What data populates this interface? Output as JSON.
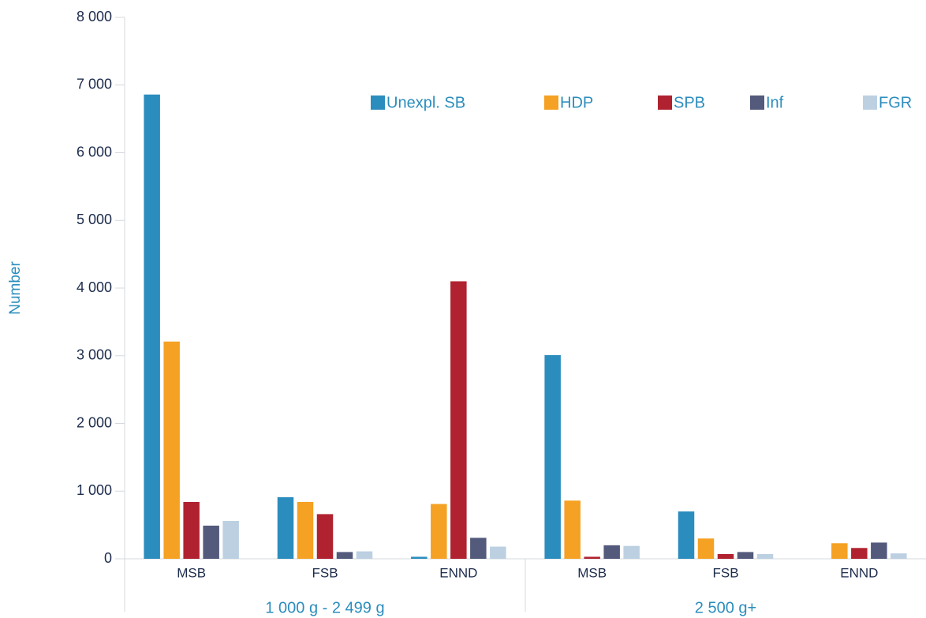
{
  "chart_data": {
    "type": "bar",
    "y_label": "Number",
    "groups": [
      {
        "name": "1 000 g - 2 499 g",
        "categories": [
          "MSB",
          "FSB",
          "ENND"
        ]
      },
      {
        "name": "2 500 g+",
        "categories": [
          "MSB",
          "FSB",
          "ENND"
        ]
      }
    ],
    "series": [
      {
        "name": "Unexpl. SB",
        "color": "#2b8dbd",
        "values": [
          6860,
          910,
          30,
          3010,
          700,
          0
        ]
      },
      {
        "name": "HDP",
        "color": "#f5a123",
        "values": [
          3210,
          840,
          810,
          860,
          300,
          230
        ]
      },
      {
        "name": "SPB",
        "color": "#b0222f",
        "values": [
          840,
          660,
          4100,
          30,
          70,
          160
        ]
      },
      {
        "name": "Inf",
        "color": "#535a7b",
        "values": [
          490,
          100,
          310,
          200,
          100,
          240
        ]
      },
      {
        "name": "FGR",
        "color": "#bcd0e2",
        "values": [
          560,
          110,
          180,
          190,
          70,
          80
        ]
      }
    ],
    "ylim": [
      0,
      8000
    ],
    "yticks": [
      0,
      {
        "value": 1000,
        "label": "1 000"
      },
      {
        "value": 2000,
        "label": "2 000"
      },
      {
        "value": 3000,
        "label": "3 000"
      },
      {
        "value": 4000,
        "label": "4 000"
      },
      {
        "value": 5000,
        "label": "5 000"
      },
      {
        "value": 6000,
        "label": "6 000"
      },
      {
        "value": 7000,
        "label": "7 000"
      },
      {
        "value": 8000,
        "label": "8 000"
      }
    ],
    "legend": "top-right"
  }
}
